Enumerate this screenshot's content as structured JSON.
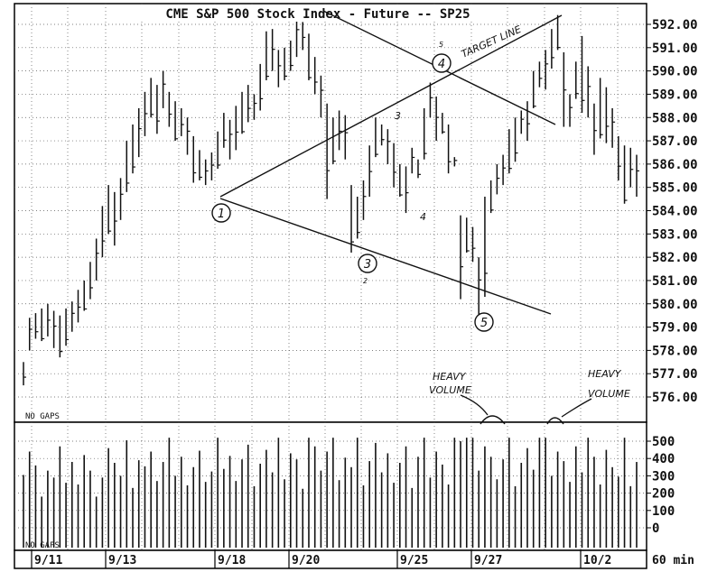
{
  "chart_data": {
    "type": "ohlc-bar",
    "title": "CME S&P 500 Stock Index - Future -- SP25",
    "interval_label": "60 min",
    "price_axis": {
      "ticks": [
        "592.00",
        "591.00",
        "590.00",
        "589.00",
        "588.00",
        "587.00",
        "586.00",
        "585.00",
        "584.00",
        "583.00",
        "582.00",
        "581.00",
        "580.00",
        "579.00",
        "578.00",
        "577.00",
        "576.00"
      ],
      "range": [
        575.3,
        592.5
      ]
    },
    "volume_axis": {
      "ticks": [
        "500",
        "400",
        "300",
        "200",
        "100",
        "0"
      ],
      "range": [
        0,
        560
      ]
    },
    "date_labels": [
      "9/11",
      "9/13",
      "9/18",
      "9/20",
      "9/25",
      "9/27",
      "10/2"
    ],
    "grid": true,
    "price_panel_note": "NO GAPS",
    "volume_panel_note": "NO GAPS",
    "price_bars": [
      [
        576.5,
        577.5
      ],
      [
        578.0,
        579.4
      ],
      [
        578.5,
        579.6
      ],
      [
        578.4,
        579.8
      ],
      [
        578.6,
        580.0
      ],
      [
        578.1,
        579.7
      ],
      [
        577.7,
        579.5
      ],
      [
        578.2,
        579.8
      ],
      [
        578.8,
        580.1
      ],
      [
        579.2,
        580.6
      ],
      [
        579.7,
        581.0
      ],
      [
        580.2,
        581.8
      ],
      [
        581.0,
        582.8
      ],
      [
        582.0,
        584.2
      ],
      [
        583.0,
        585.1
      ],
      [
        582.5,
        584.8
      ],
      [
        583.6,
        585.4
      ],
      [
        584.8,
        587.0
      ],
      [
        585.6,
        587.7
      ],
      [
        586.3,
        588.4
      ],
      [
        587.2,
        589.1
      ],
      [
        588.0,
        589.7
      ],
      [
        587.3,
        589.4
      ],
      [
        588.4,
        590.0
      ],
      [
        587.6,
        589.1
      ],
      [
        587.0,
        588.7
      ],
      [
        587.2,
        588.4
      ],
      [
        586.4,
        588.0
      ],
      [
        585.2,
        587.2
      ],
      [
        585.3,
        586.6
      ],
      [
        585.1,
        586.2
      ],
      [
        585.3,
        586.5
      ],
      [
        585.8,
        587.4
      ],
      [
        586.7,
        588.2
      ],
      [
        586.2,
        587.9
      ],
      [
        586.6,
        588.5
      ],
      [
        587.3,
        589.1
      ],
      [
        587.8,
        589.4
      ],
      [
        587.9,
        589.0
      ],
      [
        588.3,
        590.3
      ],
      [
        589.6,
        591.7
      ],
      [
        590.0,
        591.8
      ],
      [
        589.3,
        590.9
      ],
      [
        589.6,
        591.0
      ],
      [
        590.0,
        591.3
      ],
      [
        590.6,
        592.5
      ],
      [
        590.9,
        592.1
      ],
      [
        589.6,
        591.6
      ],
      [
        589.0,
        590.6
      ],
      [
        588.0,
        589.8
      ],
      [
        584.5,
        588.6
      ],
      [
        586.0,
        588.0
      ],
      [
        586.6,
        588.3
      ],
      [
        586.2,
        588.1
      ],
      [
        582.2,
        585.1
      ],
      [
        582.8,
        584.6
      ],
      [
        583.6,
        585.3
      ],
      [
        584.6,
        586.8
      ],
      [
        586.3,
        588.0
      ],
      [
        586.8,
        587.7
      ],
      [
        586.0,
        587.5
      ],
      [
        585.0,
        586.9
      ],
      [
        584.6,
        586.0
      ],
      [
        583.9,
        585.9
      ],
      [
        585.6,
        586.7
      ],
      [
        585.4,
        586.2
      ],
      [
        586.2,
        588.4
      ],
      [
        588.0,
        589.5
      ],
      [
        587.0,
        588.9
      ],
      [
        587.3,
        588.2
      ],
      [
        585.6,
        587.7
      ],
      [
        585.9,
        586.3
      ],
      [
        580.2,
        583.8
      ],
      [
        582.2,
        583.7
      ],
      [
        581.8,
        583.3
      ],
      [
        579.3,
        582.0
      ],
      [
        580.3,
        584.6
      ],
      [
        583.9,
        585.3
      ],
      [
        584.7,
        586.0
      ],
      [
        585.1,
        586.4
      ],
      [
        585.6,
        587.5
      ],
      [
        586.1,
        588.0
      ],
      [
        587.3,
        588.3
      ],
      [
        587.0,
        588.7
      ],
      [
        588.4,
        590.0
      ],
      [
        589.3,
        590.4
      ],
      [
        589.2,
        590.9
      ],
      [
        590.1,
        591.8
      ],
      [
        590.9,
        592.4
      ],
      [
        587.6,
        590.8
      ],
      [
        587.6,
        589.0
      ],
      [
        588.8,
        590.4
      ],
      [
        588.2,
        591.5
      ],
      [
        588.0,
        590.2
      ],
      [
        586.4,
        588.6
      ],
      [
        587.1,
        589.7
      ],
      [
        586.9,
        589.3
      ],
      [
        586.7,
        588.4
      ],
      [
        585.3,
        587.2
      ],
      [
        584.3,
        586.8
      ],
      [
        585.0,
        586.7
      ],
      [
        584.6,
        586.4
      ]
    ],
    "volume_bars": [
      305,
      440,
      360,
      180,
      330,
      290,
      470,
      260,
      380,
      250,
      420,
      330,
      180,
      290,
      460,
      375,
      300,
      505,
      230,
      390,
      355,
      440,
      270,
      380,
      520,
      300,
      410,
      245,
      350,
      445,
      265,
      325,
      520,
      340,
      415,
      270,
      395,
      480,
      240,
      370,
      450,
      320,
      520,
      280,
      430,
      395,
      225,
      520,
      470,
      330,
      440,
      520,
      275,
      405,
      350,
      520,
      245,
      385,
      490,
      320,
      430,
      260,
      375,
      470,
      230,
      410,
      520,
      290,
      440,
      365,
      250,
      520,
      500,
      520,
      520,
      330,
      470,
      410,
      280,
      395,
      520,
      240,
      375,
      460,
      335,
      520,
      520,
      300,
      440,
      385,
      265,
      470,
      320,
      520,
      410,
      250,
      450,
      350,
      295,
      520,
      240,
      380
    ],
    "annotations": {
      "title_handwritten": "TARGET LINE",
      "heavy_volume_1": [
        "HEAVY",
        "VOLUME"
      ],
      "heavy_volume_2": [
        "HEAVY",
        "VOLUME"
      ],
      "wave_labels": [
        "1",
        "2",
        "3",
        "4",
        "5",
        "3",
        "4",
        "5",
        "2"
      ]
    }
  }
}
